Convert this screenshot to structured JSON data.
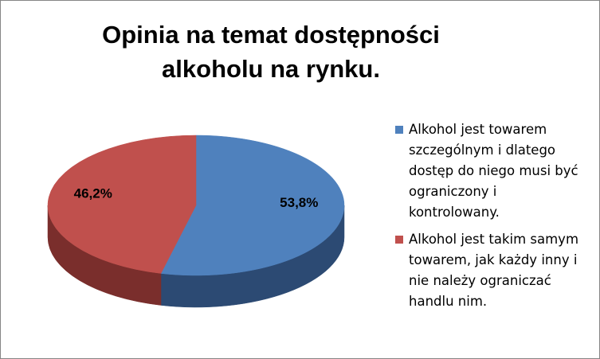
{
  "chart_data": {
    "type": "pie",
    "title": "Opinia na temat dostępności alkoholu na rynku.",
    "categories": [
      "Alkohol jest towarem szczególnym i dlatego dostęp do niego musi być ograniczony i kontrolowany.",
      "Alkohol jest takim samym towarem, jak każdy inny i nie należy ograniczać handlu nim."
    ],
    "values": [
      53.8,
      46.2
    ],
    "value_labels": [
      "53,8%",
      "46,2%"
    ],
    "colors": [
      "#4f81bd",
      "#c0504d"
    ],
    "side_colors": [
      "#2c4a73",
      "#7a2e2c"
    ],
    "legend": "right"
  }
}
